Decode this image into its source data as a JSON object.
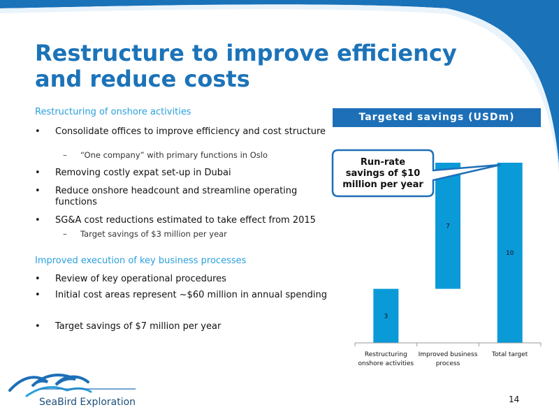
{
  "page": {
    "title": "Restructure to improve efficiency and reduce costs",
    "page_number": "14"
  },
  "brand": {
    "logo_text": "SeaBird Exploration",
    "primary_color": "#1d6fb7",
    "accent_color": "#2aa0dc"
  },
  "sections": [
    {
      "heading": "Restructuring of onshore activities",
      "bullets": [
        {
          "text": "Consolidate offices to improve efficiency and cost structure",
          "sub": [
            "“One company” with primary functions in Oslo"
          ]
        },
        {
          "text": "Removing costly expat set-up in Dubai",
          "sub": []
        },
        {
          "text": "Reduce onshore headcount and streamline operating functions",
          "sub": []
        },
        {
          "text": "SG&A cost reductions estimated to take effect from 2015",
          "sub": [
            "Target savings of $3 million per year"
          ]
        }
      ]
    },
    {
      "heading": "Improved execution of key business processes",
      "bullets": [
        {
          "text": "Review of key operational procedures",
          "sub": []
        },
        {
          "text": "Initial cost areas represent ~$60 million in annual spending",
          "sub": []
        },
        {
          "text": "Target savings of $7 million per year",
          "sub": []
        }
      ]
    }
  ],
  "chart_data": {
    "type": "bar",
    "subtype": "waterfall",
    "title": "Targeted savings (USDm)",
    "categories": [
      "Restructuring onshore activities",
      "Improved business process",
      "Total target"
    ],
    "category_lines": [
      [
        "Restructuring",
        "onshore activities"
      ],
      [
        "Improved business",
        "process"
      ],
      [
        "Total target"
      ]
    ],
    "values": [
      3,
      7,
      10
    ],
    "bases": [
      0,
      3,
      0
    ],
    "data_labels": [
      "3",
      "7",
      "10"
    ],
    "ylim": [
      0,
      10
    ],
    "grid": false,
    "bar_color": "#0b9ad8",
    "callout": {
      "lines": [
        "Run-rate",
        "savings of $10",
        "million per year"
      ]
    }
  }
}
